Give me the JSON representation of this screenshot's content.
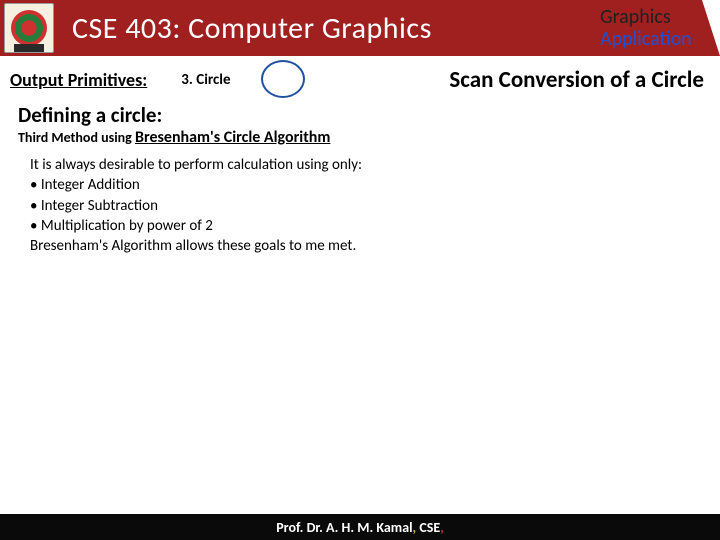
{
  "header": {
    "course_title": "CSE 403: Computer Graphics",
    "corner_line1": "Graphics",
    "corner_line2": "Application",
    "bg_color": "#a02020",
    "title_color": "#ffffff"
  },
  "subhead": {
    "left_label": "Output Primitives:",
    "item_number": "3. Circle",
    "right_label": "Scan Conversion of a Circle",
    "circle_border_color": "#2050a0"
  },
  "content": {
    "section_title": "Defining a circle:",
    "method_prefix": "Third Method using ",
    "method_algorithm": "Bresenham's Circle Algorithm",
    "intro_line": "It is always desirable to perform calculation using only:",
    "bullets": [
      "Integer Addition",
      "Integer Subtraction",
      "Multiplication by power of 2"
    ],
    "closing_line": "Bresenham's Algorithm allows these goals to me met."
  },
  "footer": {
    "author_prefix": "Prof. Dr. A. H. M. Kamal",
    "dept": " CSE",
    "bg_color": "#0a0a0a"
  }
}
